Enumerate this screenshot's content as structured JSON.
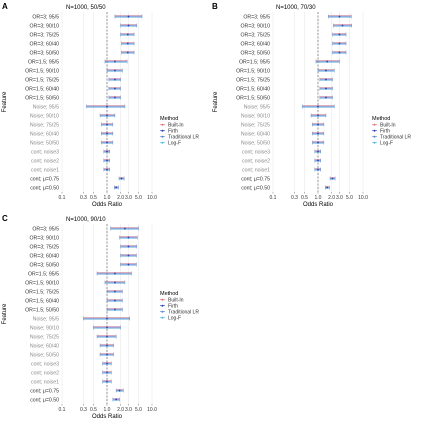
{
  "figure": {
    "method_legend": {
      "title": "Method",
      "entries": [
        {
          "name": "Built-In",
          "color": "#e8706a"
        },
        {
          "name": "Firth",
          "color": "#2a3fbf"
        },
        {
          "name": "Traditional LR",
          "color": "#5b84c4"
        },
        {
          "name": "Log-F",
          "color": "#4fb6d9"
        }
      ]
    },
    "colors": {
      "gridline": "#e6e6e6",
      "reference_line": "#555555",
      "axis_text": "#333333",
      "noise_label": "#8a8a8a"
    }
  },
  "chart_data": [
    {
      "panel": "A",
      "type": "forest",
      "title": "N=1000, 50/50",
      "xlabel": "Odds Ratio",
      "ylabel": "Feature",
      "x_scale": "log",
      "xlim": [
        0.1,
        10.0
      ],
      "xticks": [
        "0.1",
        "0.3",
        "0.5",
        "1.0",
        "2.0",
        "3.0",
        "5.0",
        "10.0"
      ],
      "reference_line": 1.0,
      "grid": true,
      "legend": "right",
      "features": [
        "OR=3; 95/5",
        "OR=3; 90/10",
        "OR=3; 75/25",
        "OR=3; 60/40",
        "OR=3; 50/50",
        "OR=1.5; 95/5",
        "OR=1.5; 90/10",
        "OR=1.5; 75/25",
        "OR=1.5; 60/40",
        "OR=1.5; 50/50",
        "Noise; 95/5",
        "Noise; 90/10",
        "Noise; 75/25",
        "Noise; 60/40",
        "Noise; 50/50",
        "cont; noise3",
        "cont; noise2",
        "cont; noise1",
        "cont; μ=0.75",
        "cont; μ=0.50"
      ],
      "estimates": [
        3.0,
        3.0,
        2.9,
        2.9,
        2.9,
        1.5,
        1.5,
        1.5,
        1.5,
        1.5,
        1.0,
        1.0,
        1.0,
        1.0,
        1.0,
        1.0,
        1.0,
        1.0,
        2.1,
        1.6
      ],
      "ci_low": [
        1.5,
        2.0,
        2.0,
        2.1,
        2.1,
        0.9,
        1.0,
        1.1,
        1.1,
        1.1,
        0.35,
        0.7,
        0.75,
        0.75,
        0.75,
        0.85,
        0.85,
        0.85,
        1.85,
        1.45
      ],
      "ci_high": [
        6.0,
        4.6,
        4.0,
        4.0,
        4.0,
        2.8,
        2.2,
        2.0,
        2.0,
        2.0,
        2.5,
        1.5,
        1.35,
        1.35,
        1.35,
        1.15,
        1.15,
        1.15,
        2.4,
        1.8
      ]
    },
    {
      "panel": "B",
      "type": "forest",
      "title": "N=1000, 70/30",
      "xlabel": "Odds Ratio",
      "ylabel": "Feature",
      "x_scale": "log",
      "xlim": [
        0.1,
        10.0
      ],
      "xticks": [
        "0.1",
        "0.3",
        "0.5",
        "1.0",
        "2.0",
        "3.0",
        "5.0",
        "10.0"
      ],
      "reference_line": 1.0,
      "grid": true,
      "legend": "right",
      "features": [
        "OR=3; 95/5",
        "OR=3; 90/10",
        "OR=3; 75/25",
        "OR=3; 60/40",
        "OR=3; 50/50",
        "OR=1.5; 95/5",
        "OR=1.5; 90/10",
        "OR=1.5; 75/25",
        "OR=1.5; 60/40",
        "OR=1.5; 50/50",
        "Noise; 95/5",
        "Noise; 90/10",
        "Noise; 75/25",
        "Noise; 60/40",
        "Noise; 50/50",
        "cont; noise3",
        "cont; noise2",
        "cont; noise1",
        "cont; μ=0.75",
        "cont; μ=0.50"
      ],
      "estimates": [
        3.0,
        3.5,
        3.0,
        3.0,
        3.0,
        1.6,
        1.5,
        1.5,
        1.5,
        1.5,
        1.0,
        1.0,
        1.0,
        1.0,
        1.0,
        1.0,
        1.0,
        1.0,
        2.1,
        1.6
      ],
      "ci_low": [
        1.7,
        2.2,
        2.1,
        2.1,
        2.1,
        0.9,
        1.0,
        1.1,
        1.1,
        1.1,
        0.45,
        0.7,
        0.75,
        0.75,
        0.75,
        0.85,
        0.85,
        0.85,
        1.85,
        1.45
      ],
      "ci_high": [
        5.5,
        5.6,
        4.2,
        4.2,
        4.2,
        3.0,
        2.3,
        2.1,
        2.1,
        2.1,
        2.3,
        1.5,
        1.35,
        1.35,
        1.35,
        1.15,
        1.15,
        1.15,
        2.4,
        1.8
      ]
    },
    {
      "panel": "C",
      "type": "forest",
      "title": "N=1000, 90/10",
      "xlabel": "Odds Ratio",
      "ylabel": "Feature",
      "x_scale": "log",
      "xlim": [
        0.1,
        10.0
      ],
      "xticks": [
        "0.1",
        "0.3",
        "0.5",
        "1.0",
        "2.0",
        "3.0",
        "5.0",
        "10.0"
      ],
      "reference_line": 1.0,
      "grid": true,
      "legend": "right",
      "features": [
        "OR=3; 95/5",
        "OR=3; 90/10",
        "OR=3; 75/25",
        "OR=3; 60/40",
        "OR=3; 50/50",
        "OR=1.5; 95/5",
        "OR=1.5; 90/10",
        "OR=1.5; 75/25",
        "OR=1.5; 60/40",
        "OR=1.5; 50/50",
        "Noise; 95/5",
        "Noise; 90/10",
        "Noise; 75/25",
        "Noise; 60/40",
        "Noise; 50/50",
        "cont; noise3",
        "cont; noise2",
        "cont; noise1",
        "cont; μ=0.75",
        "cont; μ=0.50"
      ],
      "estimates": [
        2.5,
        3.0,
        3.0,
        3.0,
        3.0,
        1.5,
        1.5,
        1.5,
        1.5,
        1.5,
        1.0,
        1.0,
        1.0,
        1.0,
        1.0,
        1.0,
        1.0,
        1.0,
        1.9,
        1.6
      ],
      "ci_low": [
        1.2,
        1.9,
        2.0,
        2.0,
        2.0,
        0.6,
        0.9,
        1.0,
        1.0,
        1.0,
        0.3,
        0.5,
        0.6,
        0.7,
        0.7,
        0.8,
        0.8,
        0.8,
        1.6,
        1.35
      ],
      "ci_high": [
        5.0,
        4.7,
        4.6,
        4.5,
        4.5,
        3.5,
        2.5,
        2.2,
        2.2,
        2.2,
        3.2,
        2.0,
        1.6,
        1.4,
        1.4,
        1.25,
        1.25,
        1.25,
        2.3,
        1.9
      ]
    }
  ]
}
